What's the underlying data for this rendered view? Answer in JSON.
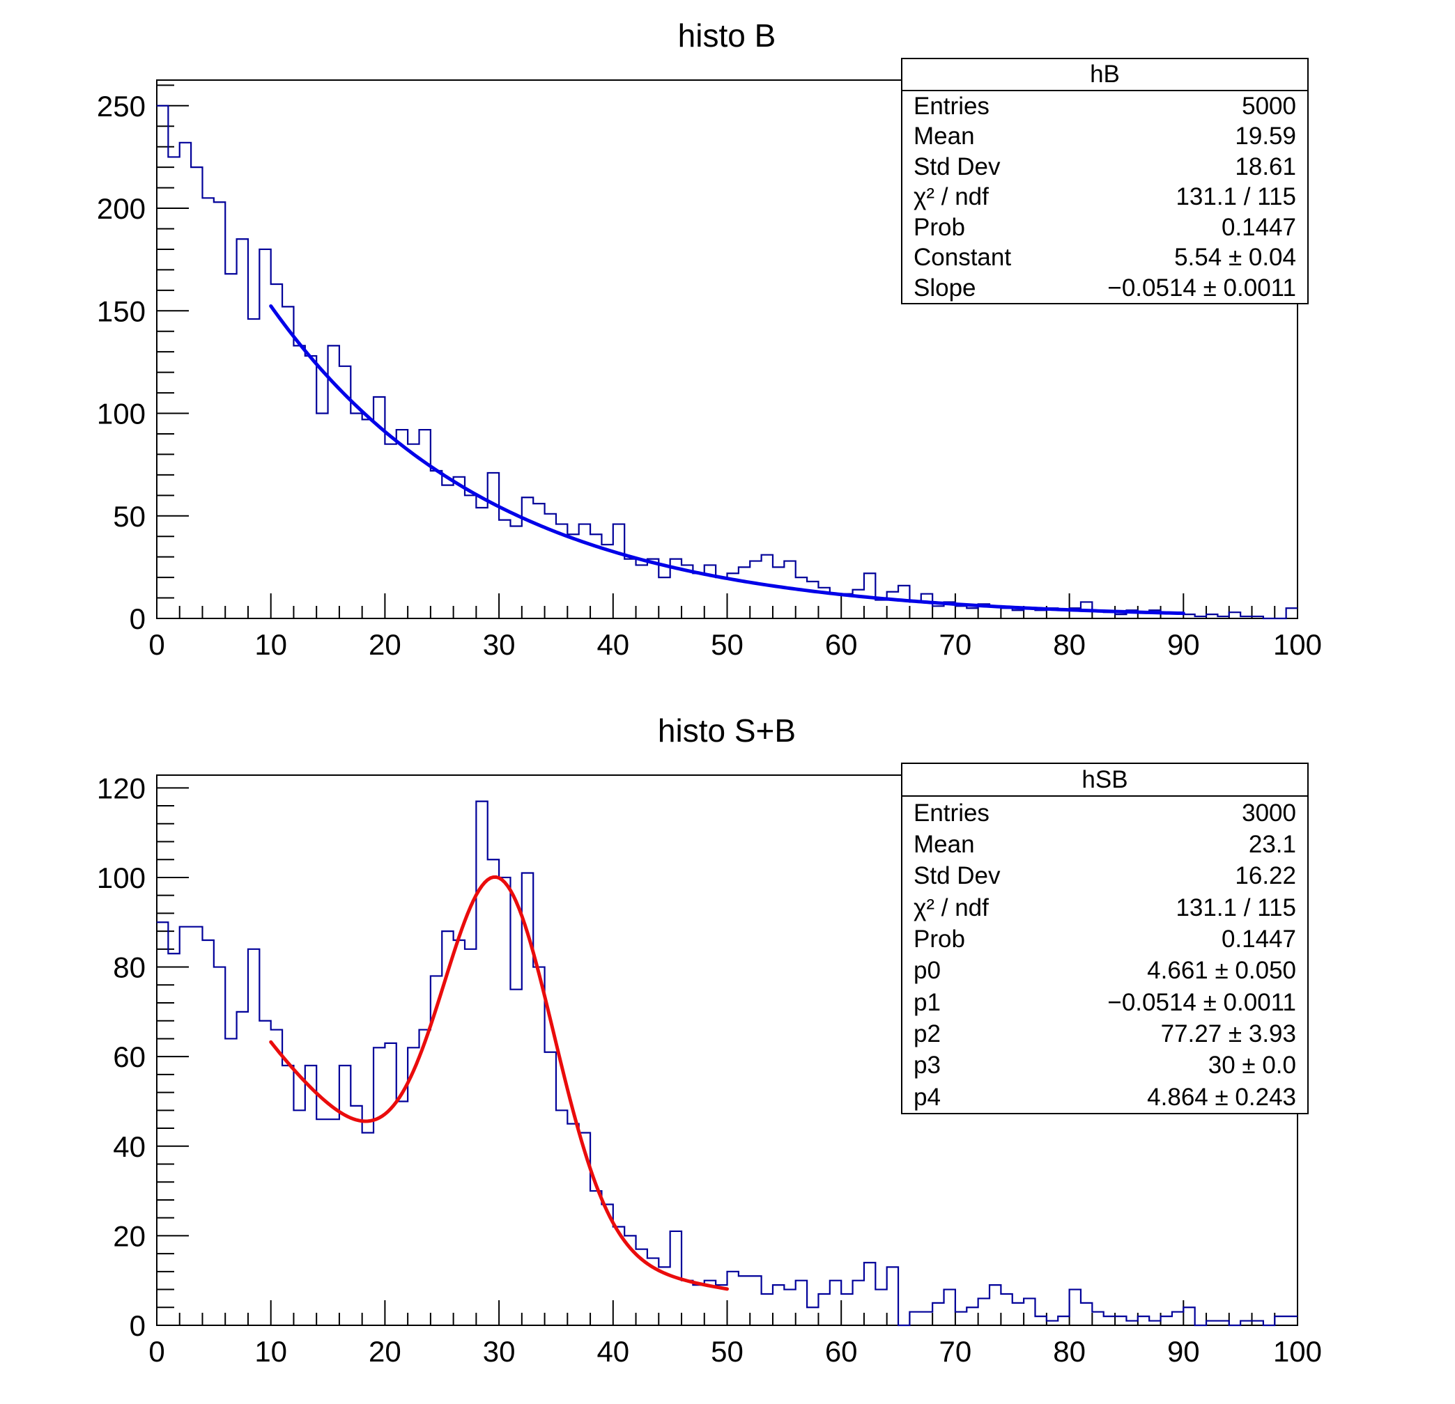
{
  "page": {
    "background": "#ffffff"
  },
  "panels": [
    {
      "title": "histo B",
      "stats": {
        "title": "hB",
        "rows": [
          {
            "label": "Entries",
            "value": "5000"
          },
          {
            "label": "Mean",
            "value": "19.59"
          },
          {
            "label": "Std Dev",
            "value": "18.61"
          },
          {
            "label": "χ² / ndf",
            "value": "131.1 / 115"
          },
          {
            "label": "Prob",
            "value": "0.1447"
          },
          {
            "label": "Constant",
            "value": "5.54 ± 0.04"
          },
          {
            "label": "Slope",
            "value": "−0.0514 ± 0.0011"
          }
        ]
      }
    },
    {
      "title": "histo S+B",
      "stats": {
        "title": "hSB",
        "rows": [
          {
            "label": "Entries",
            "value": "3000"
          },
          {
            "label": "Mean",
            "value": "23.1"
          },
          {
            "label": "Std Dev",
            "value": "16.22"
          },
          {
            "label": "χ² / ndf",
            "value": "131.1 / 115"
          },
          {
            "label": "Prob",
            "value": "0.1447"
          },
          {
            "label": "p0",
            "value": "4.661 ± 0.050"
          },
          {
            "label": "p1",
            "value": "−0.0514 ± 0.0011"
          },
          {
            "label": "p2",
            "value": "77.27 ± 3.93"
          },
          {
            "label": "p3",
            "value": "30 ± 0.0"
          },
          {
            "label": "p4",
            "value": "4.864 ± 0.243"
          }
        ]
      }
    }
  ],
  "chart_data": [
    {
      "type": "bar",
      "subtype": "histogram-step",
      "title": "histo B",
      "xlabel": "",
      "ylabel": "",
      "xlim": [
        0,
        100
      ],
      "ylim": [
        0,
        262.5
      ],
      "x_major_ticks": [
        0,
        10,
        20,
        30,
        40,
        50,
        60,
        70,
        80,
        90,
        100
      ],
      "x_minor_step": 2,
      "y_major_ticks": [
        0,
        50,
        100,
        150,
        200,
        250
      ],
      "y_minor_step": 10,
      "bin_width": 1,
      "grid": false,
      "legend_position": "none",
      "hist_color": "#000099",
      "bins": [
        250,
        225,
        232,
        220,
        205,
        203,
        168,
        185,
        146,
        180,
        163,
        152,
        133,
        128,
        100,
        133,
        123,
        100,
        97,
        108,
        85,
        92,
        85,
        92,
        72,
        65,
        69,
        60,
        54,
        71,
        48,
        45,
        59,
        56,
        51,
        46,
        41,
        46,
        41,
        36,
        46,
        29,
        26,
        29,
        20,
        29,
        26,
        22,
        26,
        20,
        22,
        25,
        28,
        31,
        25,
        28,
        20,
        18,
        15,
        12,
        12,
        14,
        22,
        9,
        13,
        16,
        8,
        12,
        6,
        8,
        6,
        5,
        7,
        6,
        5,
        4,
        5,
        4,
        5,
        4,
        5,
        8,
        4,
        3,
        2,
        4,
        3,
        4,
        3,
        3,
        2,
        1,
        2,
        1,
        3,
        1,
        1,
        0,
        0,
        5
      ],
      "fit": {
        "name": "exponential",
        "expr": "exp(Constant + Slope*x)",
        "range": [
          10,
          90
        ],
        "color": "#0000e8",
        "params": {
          "Constant": 5.54,
          "Slope": -0.0514
        }
      }
    },
    {
      "type": "bar",
      "subtype": "histogram-step",
      "title": "histo S+B",
      "xlabel": "",
      "ylabel": "",
      "xlim": [
        0,
        100
      ],
      "ylim": [
        0,
        122.85
      ],
      "x_major_ticks": [
        0,
        10,
        20,
        30,
        40,
        50,
        60,
        70,
        80,
        90,
        100
      ],
      "x_minor_step": 2,
      "y_major_ticks": [
        0,
        20,
        40,
        60,
        80,
        100,
        120
      ],
      "y_minor_step": 4,
      "bin_width": 1,
      "grid": false,
      "legend_position": "none",
      "hist_color": "#000099",
      "bins": [
        90,
        83,
        89,
        89,
        86,
        80,
        64,
        70,
        84,
        68,
        66,
        58,
        48,
        58,
        46,
        46,
        58,
        49,
        43,
        62,
        63,
        50,
        62,
        66,
        78,
        88,
        86,
        84,
        117,
        104,
        100,
        75,
        101,
        80,
        61,
        48,
        45,
        43,
        30,
        27,
        22,
        20,
        17,
        15,
        13,
        21,
        10,
        9,
        10,
        9,
        12,
        11,
        11,
        7,
        9,
        8,
        10,
        4,
        7,
        10,
        7,
        10,
        14,
        8,
        13,
        0,
        3,
        3,
        5,
        8,
        3,
        4,
        6,
        9,
        7,
        5,
        6,
        2,
        1,
        2,
        8,
        5,
        3,
        2,
        2,
        1,
        2,
        1,
        2,
        3,
        4,
        0,
        1,
        1,
        0,
        1,
        1,
        0,
        2,
        2
      ],
      "fit": {
        "name": "expo+gaus",
        "expr": "exp(p0 + p1*x) + p2*exp(-0.5*((x-p3)/p4)^2)",
        "range": [
          10,
          50
        ],
        "color": "#ea0c0c",
        "params": {
          "p0": 4.661,
          "p1": -0.0514,
          "p2": 77.27,
          "p3": 30,
          "p4": 4.864
        }
      }
    }
  ]
}
